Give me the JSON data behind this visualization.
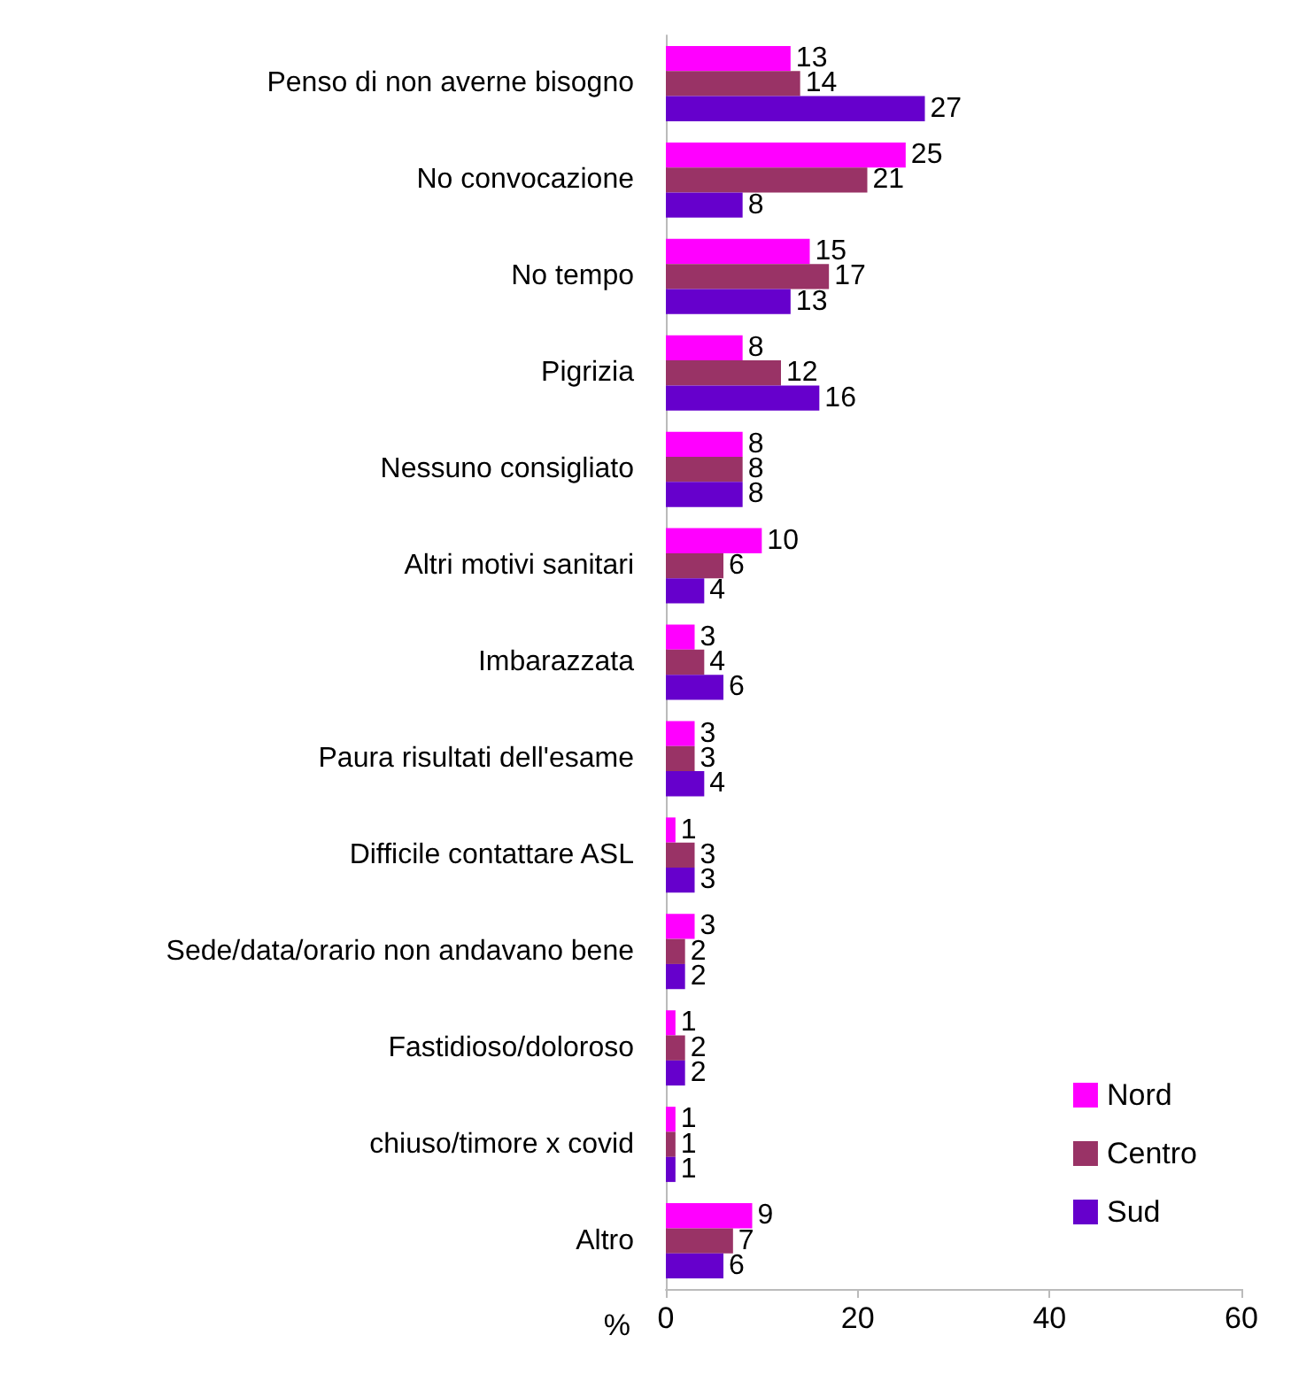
{
  "chart_data": {
    "type": "bar",
    "orientation": "horizontal",
    "xlabel": "%",
    "categories": [
      "Penso di non averne bisogno",
      "No convocazione",
      "No tempo",
      "Pigrizia",
      "Nessuno consigliato",
      "Altri motivi sanitari",
      "Imbarazzata",
      "Paura risultati dell'esame",
      "Difficile contattare ASL",
      "Sede/data/orario non andavano bene",
      "Fastidioso/doloroso",
      "chiuso/timore x covid",
      "Altro"
    ],
    "series": [
      {
        "name": "Nord",
        "color": "#ff00ff",
        "values": [
          13,
          25,
          15,
          8,
          8,
          10,
          3,
          3,
          1,
          3,
          1,
          1,
          9
        ]
      },
      {
        "name": "Centro",
        "color": "#993366",
        "values": [
          14,
          21,
          17,
          12,
          8,
          6,
          4,
          3,
          3,
          2,
          2,
          1,
          7
        ]
      },
      {
        "name": "Sud",
        "color": "#6600cc",
        "values": [
          27,
          8,
          13,
          16,
          8,
          4,
          6,
          4,
          3,
          2,
          2,
          1,
          6
        ]
      }
    ],
    "xlim": [
      0,
      60
    ],
    "xticks": [
      0,
      20,
      40,
      60
    ],
    "data_labels": true,
    "grid": false,
    "legend": "bottom right"
  }
}
